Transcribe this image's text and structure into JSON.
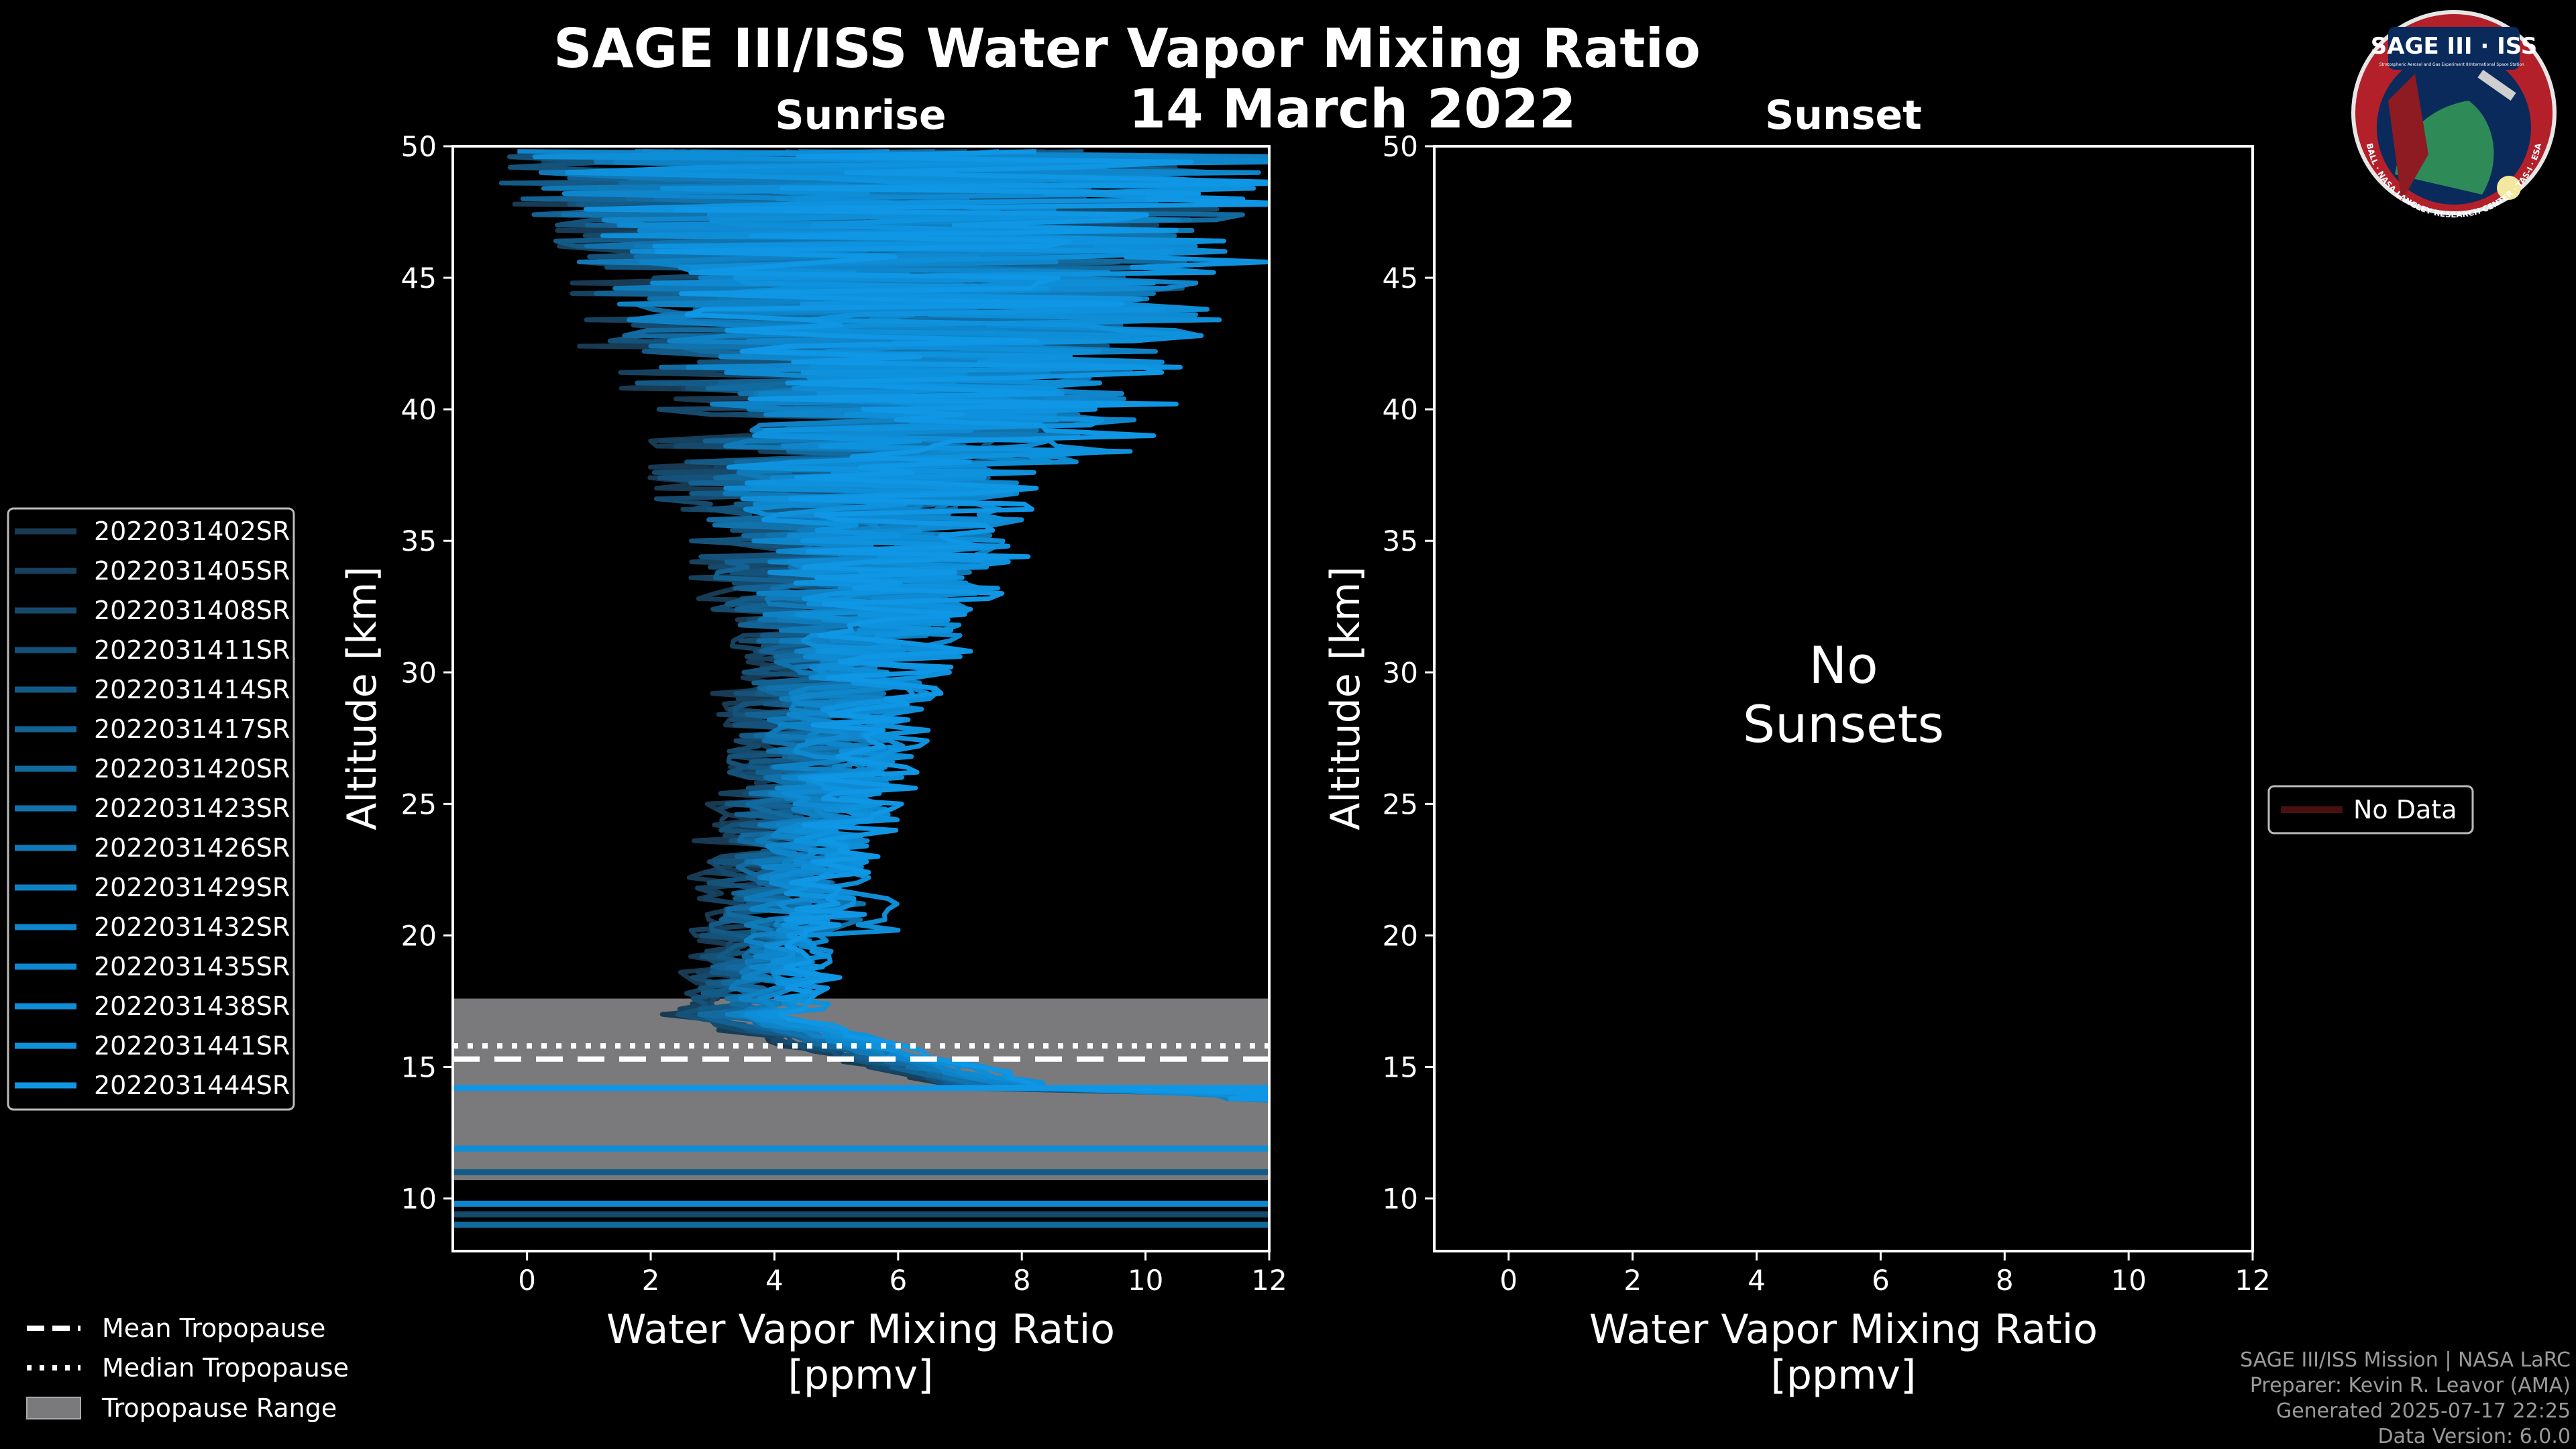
{
  "title": "SAGE III/ISS Water Vapor Mixing Ratio",
  "date": "14 March 2022",
  "logo": {
    "name": "SAGE III · ISS",
    "subtitle_left": "Stratospheric Aerosol and Gas Experiment III",
    "subtitle_right": "International Space Station",
    "ring_text": "BALL · NASA LANGLEY RESEARCH CENTER · TAS-I · ESA"
  },
  "credits": {
    "line1": "SAGE III/ISS Mission | NASA LaRC",
    "line2": "Preparer: Kevin R. Leavor (AMA)",
    "line3": "Generated 2025-07-17 22:25",
    "line4": "Data Version: 6.0.0"
  },
  "tropopause_legend": {
    "mean": "Mean Tropopause",
    "median": "Median Tropopause",
    "range": "Tropopause Range"
  },
  "colors": {
    "background": "#000000",
    "profile_base": "#1a8fd0",
    "tropopause_range": "#7a7a7c"
  },
  "chart_data": [
    {
      "type": "line",
      "title": "Sunrise",
      "xlabel": "Water Vapor Mixing Ratio",
      "xlabel_units": "[ppmv]",
      "ylabel": "Altitude [km]",
      "xlim": [
        -1.2,
        12
      ],
      "ylim": [
        8,
        50
      ],
      "xticks": [
        "0",
        "2",
        "4",
        "6",
        "8",
        "10",
        "12"
      ],
      "yticks": [
        "10",
        "15",
        "20",
        "25",
        "30",
        "35",
        "40",
        "45",
        "50"
      ],
      "tropopause": {
        "mean_km": 15.3,
        "median_km": 15.8,
        "range_km": [
          10.7,
          17.6
        ]
      },
      "legend_location": "left",
      "series_style": "noisy vertical profiles: ~5 ppmv at 20-30 km, spreading to 1-12 ppmv above 35 km, minimum ~3 ppmv near 16 km, rising steeply below 14 km",
      "series": [
        {
          "name": "2022031402SR",
          "color": "#183a53"
        },
        {
          "name": "2022031405SR",
          "color": "#17425f"
        },
        {
          "name": "2022031408SR",
          "color": "#164a6c"
        },
        {
          "name": "2022031411SR",
          "color": "#155279"
        },
        {
          "name": "2022031414SR",
          "color": "#145a86"
        },
        {
          "name": "2022031417SR",
          "color": "#136293"
        },
        {
          "name": "2022031420SR",
          "color": "#126a9f"
        },
        {
          "name": "2022031423SR",
          "color": "#1172ac"
        },
        {
          "name": "2022031426SR",
          "color": "#107ab9"
        },
        {
          "name": "2022031429SR",
          "color": "#0f82c5"
        },
        {
          "name": "2022031432SR",
          "color": "#0f86cc"
        },
        {
          "name": "2022031435SR",
          "color": "#0f8ad2"
        },
        {
          "name": "2022031438SR",
          "color": "#0f8ed8"
        },
        {
          "name": "2022031441SR",
          "color": "#0f92de"
        },
        {
          "name": "2022031444SR",
          "color": "#0f96e4"
        }
      ]
    },
    {
      "type": "line",
      "title": "Sunset",
      "xlabel": "Water Vapor Mixing Ratio",
      "xlabel_units": "[ppmv]",
      "ylabel": "Altitude [km]",
      "xlim": [
        -1.2,
        12
      ],
      "ylim": [
        8,
        50
      ],
      "xticks": [
        "0",
        "2",
        "4",
        "6",
        "8",
        "10",
        "12"
      ],
      "yticks": [
        "10",
        "15",
        "20",
        "25",
        "30",
        "35",
        "40",
        "45",
        "50"
      ],
      "message_line1": "No",
      "message_line2": "Sunsets",
      "legend_location": "right",
      "series": [
        {
          "name": "No Data",
          "color": "#4a0f0f"
        }
      ]
    }
  ]
}
